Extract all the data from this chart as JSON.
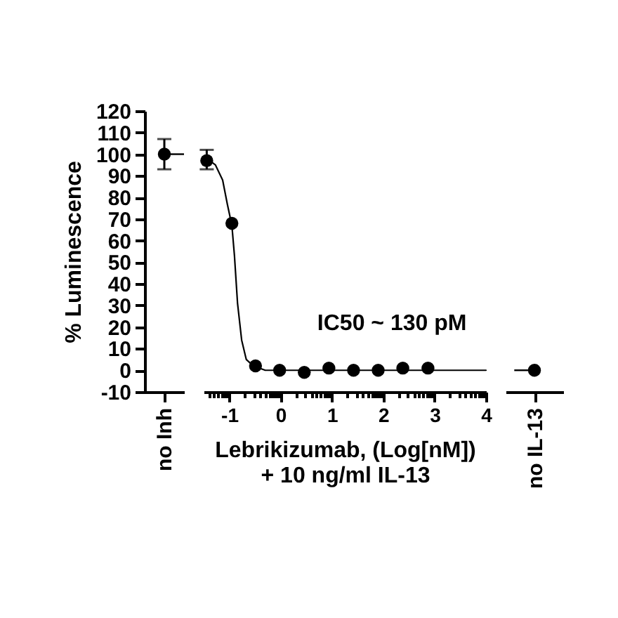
{
  "chart_data": [
    {
      "type": "scatter",
      "categories": [
        "no Inh"
      ],
      "values": [
        100
      ],
      "errors": [
        7
      ],
      "color": "#000000",
      "marker": "circle",
      "ylim": [
        -10,
        120
      ],
      "yticks": [
        -10,
        0,
        10,
        20,
        30,
        40,
        50,
        60,
        70,
        80,
        90,
        100,
        110,
        120
      ],
      "ylabel": "% Luminescence",
      "ref_lines": [
        {
          "axis": "y",
          "value": 100
        }
      ]
    },
    {
      "type": "scatter",
      "xlim": [
        -1.5,
        4
      ],
      "xticks": [
        {
          "value": -1.4,
          "label": null
        },
        {
          "value": -1.3,
          "label": null
        },
        {
          "value": -1.22,
          "label": null
        },
        {
          "value": -1.15,
          "label": null
        },
        {
          "value": -1.1,
          "label": null
        },
        {
          "value": -1.05,
          "label": null
        },
        -1,
        {
          "value": -0.7,
          "label": null
        },
        {
          "value": -0.52,
          "label": null
        },
        {
          "value": -0.4,
          "label": null
        },
        {
          "value": -0.3,
          "label": null
        },
        {
          "value": -0.22,
          "label": null
        },
        {
          "value": -0.15,
          "label": null
        },
        {
          "value": -0.1,
          "label": null
        },
        {
          "value": -0.05,
          "label": null
        },
        0,
        {
          "value": 0.3,
          "label": null
        },
        {
          "value": 0.48,
          "label": null
        },
        {
          "value": 0.6,
          "label": null
        },
        {
          "value": 0.7,
          "label": null
        },
        {
          "value": 0.78,
          "label": null
        },
        {
          "value": 0.85,
          "label": null
        },
        {
          "value": 0.9,
          "label": null
        },
        {
          "value": 0.95,
          "label": null
        },
        1,
        {
          "value": 1.3,
          "label": null
        },
        {
          "value": 1.48,
          "label": null
        },
        {
          "value": 1.6,
          "label": null
        },
        {
          "value": 1.7,
          "label": null
        },
        {
          "value": 1.78,
          "label": null
        },
        {
          "value": 1.85,
          "label": null
        },
        {
          "value": 1.9,
          "label": null
        },
        {
          "value": 1.95,
          "label": null
        },
        2,
        {
          "value": 2.3,
          "label": null
        },
        {
          "value": 2.48,
          "label": null
        },
        {
          "value": 2.6,
          "label": null
        },
        {
          "value": 2.7,
          "label": null
        },
        {
          "value": 2.78,
          "label": null
        },
        {
          "value": 2.85,
          "label": null
        },
        {
          "value": 2.9,
          "label": null
        },
        {
          "value": 2.95,
          "label": null
        },
        3,
        {
          "value": 3.3,
          "label": null
        },
        {
          "value": 3.48,
          "label": null
        },
        {
          "value": 3.6,
          "label": null
        },
        {
          "value": 3.7,
          "label": null
        },
        {
          "value": 3.78,
          "label": null
        },
        {
          "value": 3.85,
          "label": null
        },
        {
          "value": 3.9,
          "label": null
        },
        {
          "value": 3.95,
          "label": null
        },
        4
      ],
      "ylim": [
        -10,
        120
      ],
      "tick_labels": "x",
      "xlabel": "Lebrikizumab, (Log[nM])\n+ 10 ng/ml IL-13",
      "annotations": [
        "IC50 ~ 130 pM"
      ],
      "series": [
        {
          "type": "line",
          "color": "#000000",
          "x": [
            -1.44,
            -1.27,
            -1.13,
            -1.04,
            -0.95,
            -0.9,
            -0.84,
            -0.76,
            -0.67,
            -0.53,
            -0.3,
            4
          ],
          "values": [
            98,
            95,
            88,
            77,
            67,
            53,
            31,
            14,
            5,
            2,
            0,
            0
          ]
        },
        {
          "type": "scatter",
          "color": "#000000",
          "marker": "circle",
          "x": [
            -1.44,
            -0.95,
            -0.49,
            -0.02,
            0.46,
            0.94,
            1.42,
            1.9,
            2.38,
            2.87
          ],
          "values": [
            97,
            68,
            2,
            0,
            -1,
            1,
            0,
            0,
            1,
            1
          ],
          "errors": [
            [
              93,
              102
            ],
            null,
            null,
            null,
            null,
            null,
            null,
            null,
            null,
            null
          ]
        }
      ]
    },
    {
      "type": "scatter",
      "categories": [
        "no IL-13"
      ],
      "values": [
        0
      ],
      "color": "#000000",
      "marker": "circle",
      "ylim": [
        -10,
        120
      ],
      "tick_labels": "x",
      "ref_lines": [
        {
          "axis": "y",
          "value": 0
        }
      ]
    }
  ]
}
